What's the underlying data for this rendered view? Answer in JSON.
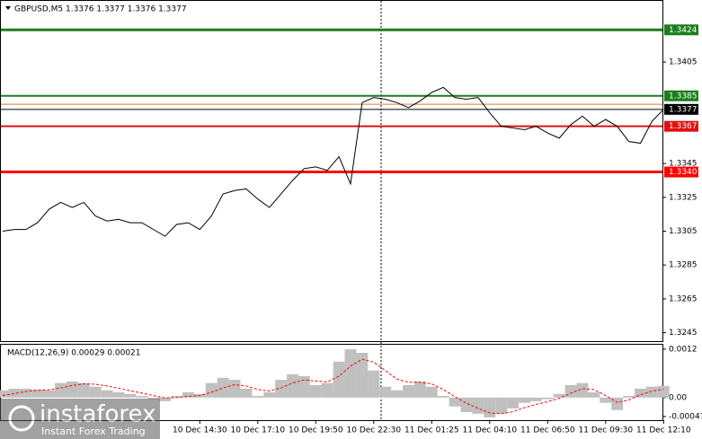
{
  "chart_data": [
    {
      "type": "line",
      "title": "GBPUSD,M5 1.3376 1.3377 1.3376 1.3377",
      "categories": [
        null,
        null,
        null,
        null,
        null,
        null,
        null,
        null,
        null,
        null,
        null,
        null,
        null,
        null,
        null,
        null,
        null,
        "10 Dec 14:30",
        null,
        null,
        null,
        null,
        "10 Dec 17:10",
        null,
        null,
        null,
        null,
        "10 Dec 19:50",
        null,
        null,
        null,
        null,
        "10 Dec 22:30",
        null,
        null,
        null,
        null,
        "11 Dec 01:25",
        null,
        null,
        null,
        null,
        "11 Dec 04:10",
        null,
        null,
        null,
        null,
        "11 Dec 06:50",
        null,
        null,
        null,
        null,
        "11 Dec 09:30",
        null,
        null,
        null,
        null,
        "11 Dec 12:10"
      ],
      "series": [
        {
          "name": "GBPUSD",
          "color": "#000000",
          "values": [
            1.3305,
            1.3306,
            1.3306,
            1.331,
            1.3318,
            1.3322,
            1.3319,
            1.3322,
            1.3314,
            1.3311,
            1.3312,
            1.331,
            1.331,
            1.3306,
            1.3302,
            1.3309,
            1.331,
            1.3306,
            1.3314,
            1.3327,
            1.3329,
            1.333,
            1.3324,
            1.3319,
            1.3327,
            1.3335,
            1.3342,
            1.3343,
            1.3341,
            1.3349,
            1.3333,
            1.3381,
            1.3384,
            1.3383,
            1.3381,
            1.3378,
            1.3382,
            1.3387,
            1.339,
            1.3384,
            1.3383,
            1.3384,
            1.3375,
            1.3367,
            1.3366,
            1.3365,
            1.3367,
            1.3363,
            1.336,
            1.3368,
            1.3373,
            1.3367,
            1.3371,
            1.3367,
            1.3358,
            1.3357,
            1.337,
            1.3377
          ]
        }
      ],
      "ylim": [
        1.324,
        1.3439
      ],
      "yticks": [
        1.3405,
        1.3345,
        1.3325,
        1.3305,
        1.3285,
        1.3265,
        1.3245
      ],
      "levels": [
        {
          "value": 1.3424,
          "label": "1.3424",
          "color": "#1a7f1a"
        },
        {
          "value": 1.3385,
          "label": "1.3385",
          "color": "#1a7f1a"
        },
        {
          "value": 1.338,
          "color": "#e07a2f"
        },
        {
          "value": 1.3377,
          "label": "1.3377",
          "color": "#000000"
        },
        {
          "value": 1.3367,
          "label": "1.3367",
          "color": "#e01010"
        },
        {
          "value": 1.334,
          "label": "1.3340",
          "color": "#ff0000"
        }
      ],
      "watermark": "instaforex",
      "watermark_subtitle": "Instant Forex Trading"
    },
    {
      "type": "macd",
      "title": "MACD(12,26,9) 0.00029 0.00021",
      "series": [
        {
          "name": "MACD",
          "color": "#c0c0c0",
          "values": [
            0.00018,
            0.00022,
            0.00022,
            0.0002,
            0.00018,
            0.00036,
            0.0004,
            0.00036,
            0.00027,
            0.00018,
            0.00013,
            9e-05,
            4e-05,
            -4e-05,
            -9e-05,
            4e-05,
            0.00013,
            9e-05,
            0.00036,
            0.00049,
            0.00044,
            0.00022,
            4e-05,
            0.00013,
            0.00044,
            0.00058,
            0.00053,
            0.00031,
            0.00036,
            0.00089,
            0.0012,
            0.00111,
            0.00067,
            0.00027,
            0.00018,
            0.00031,
            0.0004,
            0.00027,
            4e-05,
            -0.00022,
            -0.00036,
            -0.0004,
            -0.00049,
            -0.0004,
            -0.00027,
            -0.00013,
            -9e-05,
            -4e-05,
            9e-05,
            0.00031,
            0.00036,
            0.00013,
            -0.00013,
            -0.00031,
            4e-05,
            0.00022,
            0.00027,
            0.00029
          ]
        },
        {
          "name": "Signal",
          "color": "#ff0000",
          "values": [
            5e-05,
            0.0001,
            0.00015,
            0.00018,
            0.00019,
            0.00024,
            0.0003,
            0.00034,
            0.00033,
            0.00029,
            0.00023,
            0.00017,
            0.00011,
            5e-05,
            -1e-05,
            0,
            3e-05,
            5e-05,
            0.00013,
            0.00024,
            0.00032,
            0.00029,
            0.0002,
            0.00016,
            0.00024,
            0.00036,
            0.00044,
            0.00041,
            0.00039,
            0.00053,
            0.00078,
            0.00095,
            0.00088,
            0.00067,
            0.00046,
            0.00038,
            0.00038,
            0.00034,
            0.0002,
            2e-05,
            -0.00014,
            -0.00027,
            -0.00038,
            -0.0004,
            -0.00035,
            -0.00025,
            -0.00017,
            -0.0001,
            -2e-05,
            0.00011,
            0.00022,
            0.0002,
            5e-05,
            -0.00012,
            -6e-05,
            7e-05,
            0.00016,
            0.00021
          ]
        }
      ],
      "ylim": [
        -0.00056,
        0.00131
      ],
      "yticks": [
        0.0012,
        {
          "value": 0,
          "label": "0.00"
        },
        -0.00047
      ]
    }
  ]
}
